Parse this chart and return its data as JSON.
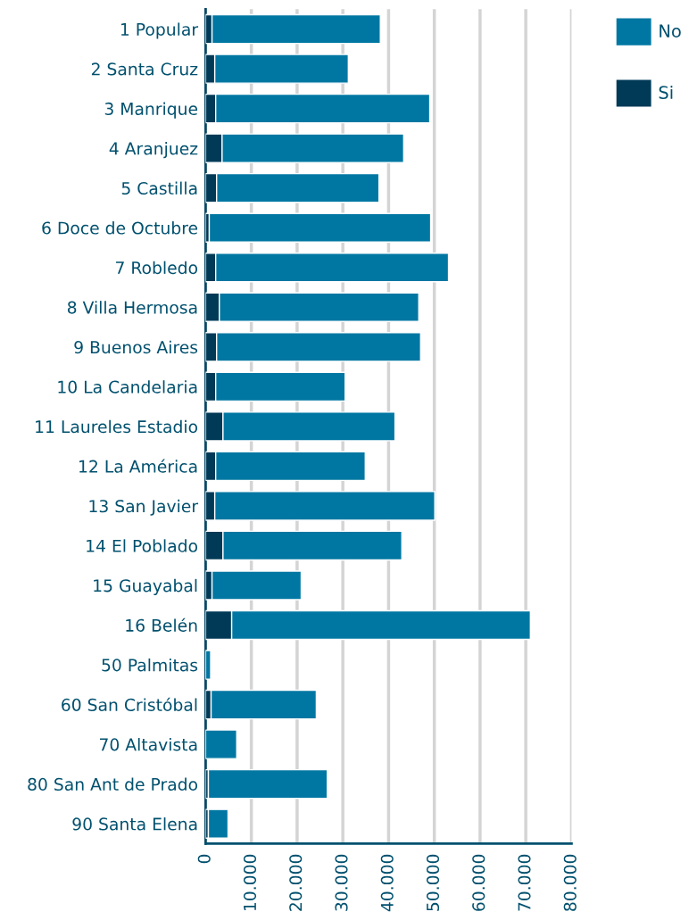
{
  "chart_data": {
    "type": "bar",
    "orientation": "horizontal",
    "stacked": true,
    "categories": [
      "1 Popular",
      "2 Santa Cruz",
      "3 Manrique",
      "4 Aranjuez",
      "5 Castilla",
      "6 Doce de Octubre",
      "7 Robledo",
      "8 Villa Hermosa",
      "9 Buenos Aires",
      "10 La Candelaria",
      "11 Laureles Estadio",
      "12 La América",
      "13 San Javier",
      "14 El Poblado",
      "15 Guayabal",
      "16 Belén",
      "50 Palmitas",
      "60 San Cristóbal",
      "70 Altavista",
      "80 San Ant de Prado",
      "90 Santa Elena"
    ],
    "series": [
      {
        "name": "Si",
        "color": "#003a57",
        "values": [
          1400,
          2000,
          2200,
          3600,
          2400,
          800,
          2200,
          3000,
          2400,
          2200,
          3800,
          2200,
          2000,
          3800,
          1400,
          5700,
          null,
          1200,
          null,
          600,
          600
        ]
      },
      {
        "name": "No",
        "color": "#0077a2",
        "values": [
          36800,
          29200,
          46800,
          39700,
          35500,
          48400,
          50900,
          43600,
          44600,
          28300,
          37600,
          32700,
          48100,
          39100,
          19500,
          65300,
          1100,
          23000,
          6800,
          26000,
          4300
        ]
      }
    ],
    "xlim": [
      0,
      80000
    ],
    "xticks": [
      0,
      {
        "value": 10000,
        "label": "10.000"
      },
      {
        "value": 20000,
        "label": "20.000"
      },
      {
        "value": 30000,
        "label": "30.000"
      },
      {
        "value": 40000,
        "label": "40.000"
      },
      {
        "value": 50000,
        "label": "50.000"
      },
      {
        "value": 60000,
        "label": "60.000"
      },
      {
        "value": 70000,
        "label": "70.000"
      },
      {
        "value": 80000,
        "label": "80.000"
      }
    ],
    "grid": "x",
    "legend": "top right"
  }
}
